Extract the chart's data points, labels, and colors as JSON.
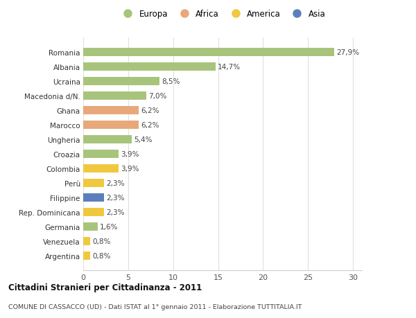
{
  "categories": [
    "Romania",
    "Albania",
    "Ucraina",
    "Macedonia d/N.",
    "Ghana",
    "Marocco",
    "Ungheria",
    "Croazia",
    "Colombia",
    "Perù",
    "Filippine",
    "Rep. Dominicana",
    "Germania",
    "Venezuela",
    "Argentina"
  ],
  "values": [
    27.9,
    14.7,
    8.5,
    7.0,
    6.2,
    6.2,
    5.4,
    3.9,
    3.9,
    2.3,
    2.3,
    2.3,
    1.6,
    0.8,
    0.8
  ],
  "labels": [
    "27,9%",
    "14,7%",
    "8,5%",
    "7,0%",
    "6,2%",
    "6,2%",
    "5,4%",
    "3,9%",
    "3,9%",
    "2,3%",
    "2,3%",
    "2,3%",
    "1,6%",
    "0,8%",
    "0,8%"
  ],
  "colors": [
    "#a8c47c",
    "#a8c47c",
    "#a8c47c",
    "#a8c47c",
    "#e8a87a",
    "#e8a87a",
    "#a8c47c",
    "#a8c47c",
    "#f0c840",
    "#f0c840",
    "#5b7fbb",
    "#f0c840",
    "#a8c47c",
    "#f0c840",
    "#f0c840"
  ],
  "legend": [
    {
      "label": "Europa",
      "color": "#a8c47c"
    },
    {
      "label": "Africa",
      "color": "#e8a87a"
    },
    {
      "label": "America",
      "color": "#f0c840"
    },
    {
      "label": "Asia",
      "color": "#5b7fbb"
    }
  ],
  "title1": "Cittadini Stranieri per Cittadinanza - 2011",
  "title2": "COMUNE DI CASSACCO (UD) - Dati ISTAT al 1° gennaio 2011 - Elaborazione TUTTITALIA.IT",
  "xlim": [
    0,
    31
  ],
  "xticks": [
    0,
    5,
    10,
    15,
    20,
    25,
    30
  ],
  "background_color": "#ffffff",
  "grid_color": "#e0e0e0",
  "bar_height": 0.55
}
